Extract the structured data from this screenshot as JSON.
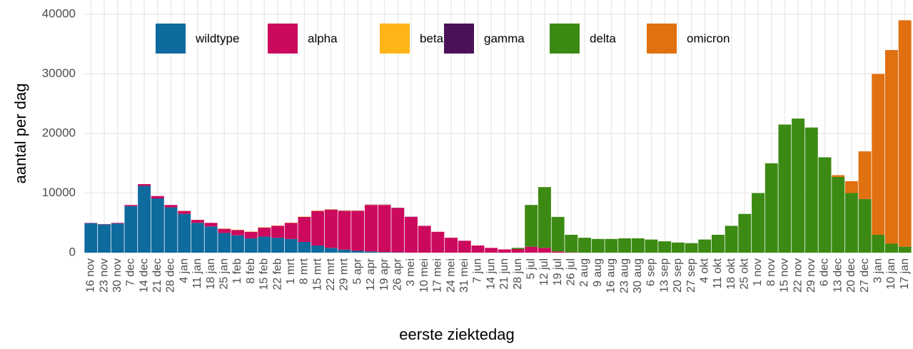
{
  "chart_data": {
    "type": "stacked-bar",
    "x_label": "eerste ziektedag",
    "y_label": "aantal per dag",
    "categories": [
      "16 nov",
      "23 nov",
      "30 nov",
      "7 dec",
      "14 dec",
      "21 dec",
      "28 dec",
      "4 jan",
      "11 jan",
      "18 jan",
      "25 jan",
      "1 feb",
      "8 feb",
      "15 feb",
      "22 feb",
      "1 mrt",
      "8 mrt",
      "15 mrt",
      "22 mrt",
      "29 mrt",
      "5 apr",
      "12 apr",
      "19 apr",
      "26 apr",
      "3 mei",
      "10 mei",
      "17 mei",
      "24 mei",
      "31 mei",
      "7 jun",
      "14 jun",
      "21 jun",
      "28 jun",
      "5 jul",
      "12 jul",
      "19 jul",
      "26 jul",
      "2 aug",
      "9 aug",
      "16 aug",
      "23 aug",
      "30 aug",
      "6 sep",
      "13 sep",
      "20 sep",
      "27 sep",
      "4 okt",
      "11 okt",
      "18 okt",
      "25 okt",
      "1 nov",
      "8 nov",
      "15 nov",
      "22 nov",
      "29 nov",
      "6 dec",
      "13 dec",
      "20 dec",
      "27 dec",
      "3 jan",
      "10 jan",
      "17 jan"
    ],
    "series": [
      {
        "name": "wildtype",
        "color": "#0f6a9e",
        "values": [
          4950,
          4750,
          4900,
          7800,
          11200,
          9100,
          7600,
          6500,
          5000,
          4400,
          3300,
          2900,
          2400,
          2700,
          2500,
          2300,
          1800,
          1200,
          800,
          500,
          300,
          200,
          100,
          50,
          0,
          0,
          0,
          0,
          0,
          0,
          0,
          0,
          0,
          0,
          0,
          0,
          0,
          0,
          0,
          0,
          0,
          0,
          0,
          0,
          0,
          0,
          0,
          0,
          0,
          0,
          0,
          0,
          0,
          0,
          0,
          0,
          0,
          0,
          0,
          0,
          0,
          0
        ]
      },
      {
        "name": "alpha",
        "color": "#cc0a5d",
        "values": [
          50,
          50,
          100,
          200,
          300,
          400,
          400,
          500,
          500,
          600,
          700,
          900,
          1100,
          1500,
          2000,
          2700,
          4200,
          5800,
          6400,
          6500,
          6700,
          7800,
          7900,
          7450,
          6000,
          4500,
          3500,
          2500,
          2000,
          1200,
          800,
          550,
          600,
          1000,
          800,
          200,
          50,
          0,
          0,
          0,
          0,
          0,
          0,
          0,
          0,
          0,
          0,
          0,
          0,
          0,
          0,
          0,
          0,
          0,
          0,
          0,
          0,
          0,
          0,
          0,
          0,
          0
        ]
      },
      {
        "name": "beta",
        "color": "#ffb418",
        "values": [
          0,
          0,
          0,
          0,
          0,
          0,
          0,
          0,
          0,
          0,
          50,
          50,
          50,
          50,
          50,
          50,
          50,
          50,
          50,
          50,
          50,
          50,
          50,
          0,
          0,
          0,
          0,
          0,
          0,
          0,
          0,
          0,
          0,
          0,
          0,
          0,
          0,
          0,
          0,
          0,
          0,
          0,
          0,
          0,
          0,
          0,
          0,
          0,
          0,
          0,
          0,
          0,
          0,
          0,
          0,
          0,
          0,
          0,
          0,
          0,
          0,
          0
        ]
      },
      {
        "name": "gamma",
        "color": "#4a1158",
        "values": [
          0,
          0,
          0,
          0,
          0,
          0,
          0,
          0,
          0,
          0,
          0,
          0,
          0,
          0,
          0,
          0,
          0,
          0,
          30,
          30,
          30,
          30,
          30,
          30,
          30,
          0,
          0,
          0,
          0,
          0,
          0,
          0,
          0,
          0,
          0,
          0,
          0,
          0,
          0,
          0,
          0,
          0,
          0,
          0,
          0,
          0,
          0,
          0,
          0,
          0,
          0,
          0,
          0,
          0,
          0,
          0,
          0,
          0,
          0,
          0,
          0,
          0
        ]
      },
      {
        "name": "delta",
        "color": "#3c8a13",
        "values": [
          0,
          0,
          0,
          0,
          0,
          0,
          0,
          0,
          0,
          0,
          0,
          0,
          0,
          0,
          0,
          0,
          0,
          0,
          0,
          0,
          0,
          0,
          0,
          0,
          0,
          0,
          0,
          0,
          0,
          0,
          0,
          0,
          200,
          7000,
          10200,
          5800,
          2950,
          2500,
          2300,
          2300,
          2400,
          2400,
          2200,
          1900,
          1700,
          1600,
          2200,
          3000,
          4500,
          6500,
          10000,
          15000,
          21500,
          22500,
          21000,
          16000,
          12700,
          10000,
          9000,
          3000,
          1500,
          1000
        ]
      },
      {
        "name": "omicron",
        "color": "#e07010",
        "values": [
          0,
          0,
          0,
          0,
          0,
          0,
          0,
          0,
          0,
          0,
          0,
          0,
          0,
          0,
          0,
          0,
          0,
          0,
          0,
          0,
          0,
          0,
          0,
          0,
          0,
          0,
          0,
          0,
          0,
          0,
          0,
          0,
          0,
          0,
          0,
          0,
          0,
          0,
          0,
          0,
          0,
          0,
          0,
          0,
          0,
          0,
          0,
          0,
          0,
          0,
          0,
          0,
          0,
          0,
          0,
          0,
          300,
          2000,
          8000,
          27000,
          32500,
          38000
        ]
      }
    ],
    "ylim": [
      0,
      42400
    ],
    "yticks": [
      0,
      10000,
      20000,
      30000,
      40000
    ],
    "grid": true
  }
}
